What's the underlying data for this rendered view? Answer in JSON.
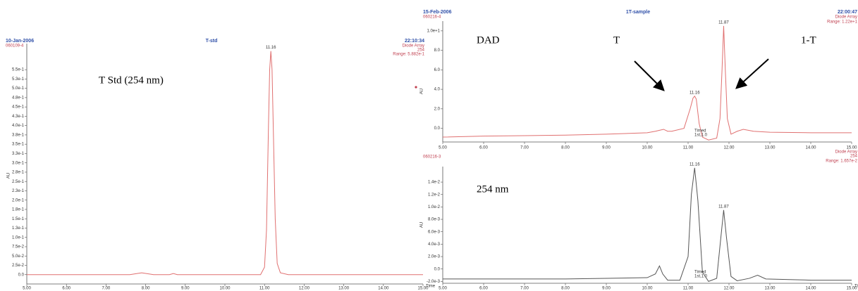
{
  "chart_data": [
    {
      "type": "line",
      "title": "T-std",
      "date": "10-Jan-2006",
      "sample_id": "060109-4",
      "time": "22:10:34",
      "detector": "Diode Array",
      "wavelength": "254",
      "range": "Range: 5.882e-1",
      "xlabel": "Time",
      "ylabel": "AU",
      "annotations": [
        "T Std (254 nm)"
      ],
      "xlim": [
        5,
        15
      ],
      "xticks": [
        {
          "value": 5,
          "label": "5.00"
        },
        {
          "value": 6,
          "label": "6.00"
        },
        {
          "value": 7,
          "label": "7.00"
        },
        {
          "value": 8,
          "label": "8.00"
        },
        {
          "value": 9,
          "label": "9.00"
        },
        {
          "value": 10,
          "label": "10.00"
        },
        {
          "value": 11,
          "label": "11.00"
        },
        {
          "value": 12,
          "label": "12.00"
        },
        {
          "value": 13,
          "label": "13.00"
        },
        {
          "value": 14,
          "label": "14.00"
        },
        {
          "value": 15,
          "label": "15.00"
        }
      ],
      "ylim": [
        -0.025,
        0.62
      ],
      "yticks": [
        {
          "value": 0.55,
          "label": "5.5e-1"
        },
        {
          "value": 0.525,
          "label": "5.3e-1"
        },
        {
          "value": 0.5,
          "label": "5.0e-1"
        },
        {
          "value": 0.475,
          "label": "4.8e-1"
        },
        {
          "value": 0.45,
          "label": "4.5e-1"
        },
        {
          "value": 0.425,
          "label": "4.3e-1"
        },
        {
          "value": 0.4,
          "label": "4.0e-1"
        },
        {
          "value": 0.375,
          "label": "3.8e-1"
        },
        {
          "value": 0.35,
          "label": "3.5e-1"
        },
        {
          "value": 0.325,
          "label": "3.3e-1"
        },
        {
          "value": 0.3,
          "label": "3.0e-1"
        },
        {
          "value": 0.275,
          "label": "2.8e-1"
        },
        {
          "value": 0.25,
          "label": "2.5e-1"
        },
        {
          "value": 0.225,
          "label": "2.3e-1"
        },
        {
          "value": 0.2,
          "label": "2.0e-1"
        },
        {
          "value": 0.175,
          "label": "1.8e-1"
        },
        {
          "value": 0.15,
          "label": "1.5e-1"
        },
        {
          "value": 0.125,
          "label": "1.3e-1"
        },
        {
          "value": 0.1,
          "label": "1.0e-1"
        },
        {
          "value": 0.075,
          "label": "7.5e-2"
        },
        {
          "value": 0.05,
          "label": "5.0e-2"
        },
        {
          "value": 0.025,
          "label": "2.5e-2"
        },
        {
          "value": 0,
          "label": "0.0"
        }
      ],
      "series": [
        {
          "color": "#e07070",
          "x": [
            5,
            6,
            7,
            7.6,
            7.9,
            8.2,
            8.6,
            8.7,
            8.8,
            10,
            10.9,
            11,
            11.05,
            11.1,
            11.13,
            11.16,
            11.19,
            11.22,
            11.27,
            11.32,
            11.4,
            11.6,
            12,
            13,
            14,
            15
          ],
          "values": [
            0,
            0,
            0,
            0,
            0.005,
            0,
            0,
            0.003,
            0,
            0,
            0,
            0.02,
            0.12,
            0.4,
            0.55,
            0.6,
            0.55,
            0.4,
            0.15,
            0.03,
            0.005,
            0,
            0,
            0,
            0,
            0
          ]
        }
      ],
      "peaks": [
        {
          "x": 11.16,
          "label": "11.16"
        }
      ]
    },
    {
      "type": "line",
      "title": "1T-sample",
      "date": "15-Feb-2006",
      "sample_id": "060216-4",
      "time": "22:00:47",
      "detector": "Diode Array",
      "range": "Range: 1.22e+1",
      "ylabel": "AU",
      "annotations": [
        "DAD",
        "T",
        "1-T"
      ],
      "timed": [
        "Timed",
        "1st,1.0"
      ],
      "xlim": [
        5,
        15
      ],
      "xticks": [
        {
          "value": 5,
          "label": "5.00"
        },
        {
          "value": 6,
          "label": "6.00"
        },
        {
          "value": 7,
          "label": "7.00"
        },
        {
          "value": 8,
          "label": "8.00"
        },
        {
          "value": 9,
          "label": "9.00"
        },
        {
          "value": 10,
          "label": "10.00"
        },
        {
          "value": 11,
          "label": "11.00"
        },
        {
          "value": 12,
          "label": "12.00"
        },
        {
          "value": 13,
          "label": "13.00"
        },
        {
          "value": 14,
          "label": "14.00"
        },
        {
          "value": 15,
          "label": "15.00"
        }
      ],
      "ylim": [
        -1.4,
        11
      ],
      "yticks": [
        {
          "value": 10,
          "label": "1.0e+1"
        },
        {
          "value": 8,
          "label": "8.0"
        },
        {
          "value": 6,
          "label": "6.0"
        },
        {
          "value": 4,
          "label": "4.0"
        },
        {
          "value": 2,
          "label": "2.0"
        },
        {
          "value": 0,
          "label": "0.0"
        }
      ],
      "series": [
        {
          "color": "#e07070",
          "x": [
            5,
            6,
            7,
            8,
            9,
            10,
            10.2,
            10.3,
            10.4,
            10.5,
            10.6,
            10.9,
            11.05,
            11.12,
            11.16,
            11.2,
            11.27,
            11.35,
            11.5,
            11.7,
            11.78,
            11.83,
            11.87,
            11.91,
            11.96,
            12.05,
            12.2,
            12.35,
            12.6,
            13,
            14,
            15
          ],
          "values": [
            -0.9,
            -0.8,
            -0.75,
            -0.7,
            -0.6,
            -0.45,
            -0.3,
            -0.2,
            -0.1,
            -0.3,
            -0.3,
            0,
            2,
            3.1,
            3.3,
            3.0,
            0.5,
            -0.9,
            -1.2,
            -1.0,
            1,
            6,
            10.5,
            6,
            1,
            -0.6,
            -0.3,
            -0.1,
            -0.3,
            -0.4,
            -0.45,
            -0.45
          ]
        }
      ],
      "peaks": [
        {
          "x": 11.16,
          "label": "11.16"
        },
        {
          "x": 11.87,
          "label": "11.87"
        }
      ]
    },
    {
      "type": "line",
      "sample_id": "060216-3",
      "detector": "Diode Array",
      "wavelength": "254",
      "range": "Range: 1.657e-2",
      "xlabel": "Time",
      "ylabel": "AU",
      "annotations": [
        "254 nm"
      ],
      "timed": [
        "Timed",
        "1st,1.0"
      ],
      "xlim": [
        5,
        15
      ],
      "xticks": [
        {
          "value": 5,
          "label": "5.00"
        },
        {
          "value": 6,
          "label": "6.00"
        },
        {
          "value": 7,
          "label": "7.00"
        },
        {
          "value": 8,
          "label": "8.00"
        },
        {
          "value": 9,
          "label": "9.00"
        },
        {
          "value": 10,
          "label": "10.00"
        },
        {
          "value": 11,
          "label": "11.00"
        },
        {
          "value": 12,
          "label": "12.00"
        },
        {
          "value": 13,
          "label": "13.00"
        },
        {
          "value": 14,
          "label": "14.00"
        },
        {
          "value": 15,
          "label": "15.00"
        }
      ],
      "ylim": [
        -0.0023,
        0.0165
      ],
      "yticks": [
        {
          "value": 0.014,
          "label": "1.4e-2"
        },
        {
          "value": 0.012,
          "label": "1.2e-2"
        },
        {
          "value": 0.01,
          "label": "1.0e-2"
        },
        {
          "value": 0.008,
          "label": "8.0e-3"
        },
        {
          "value": 0.006,
          "label": "6.0e-3"
        },
        {
          "value": 0.004,
          "label": "4.0e-3"
        },
        {
          "value": 0.002,
          "label": "2.0e-3"
        },
        {
          "value": 0,
          "label": "0.0"
        },
        {
          "value": -0.002,
          "label": "-2.0e-3"
        }
      ],
      "series": [
        {
          "color": "#555555",
          "x": [
            5,
            6,
            7,
            8,
            9,
            10,
            10.2,
            10.3,
            10.38,
            10.5,
            10.8,
            11.0,
            11.08,
            11.16,
            11.24,
            11.35,
            11.5,
            11.7,
            11.8,
            11.87,
            11.94,
            12.05,
            12.2,
            12.5,
            12.7,
            12.9,
            14,
            15
          ],
          "values": [
            -0.0016,
            -0.0016,
            -0.0016,
            -0.0016,
            -0.0015,
            -0.0014,
            -0.0008,
            0.0005,
            -0.0008,
            -0.0018,
            -0.0018,
            0.002,
            0.012,
            0.0163,
            0.011,
            -0.0005,
            -0.002,
            -0.0015,
            0.005,
            0.0095,
            0.005,
            -0.0012,
            -0.0019,
            -0.0015,
            -0.001,
            -0.0016,
            -0.0018,
            -0.0018
          ]
        }
      ],
      "peaks": [
        {
          "x": 11.16,
          "label": "11.16"
        },
        {
          "x": 11.87,
          "label": "11.87"
        }
      ]
    }
  ]
}
